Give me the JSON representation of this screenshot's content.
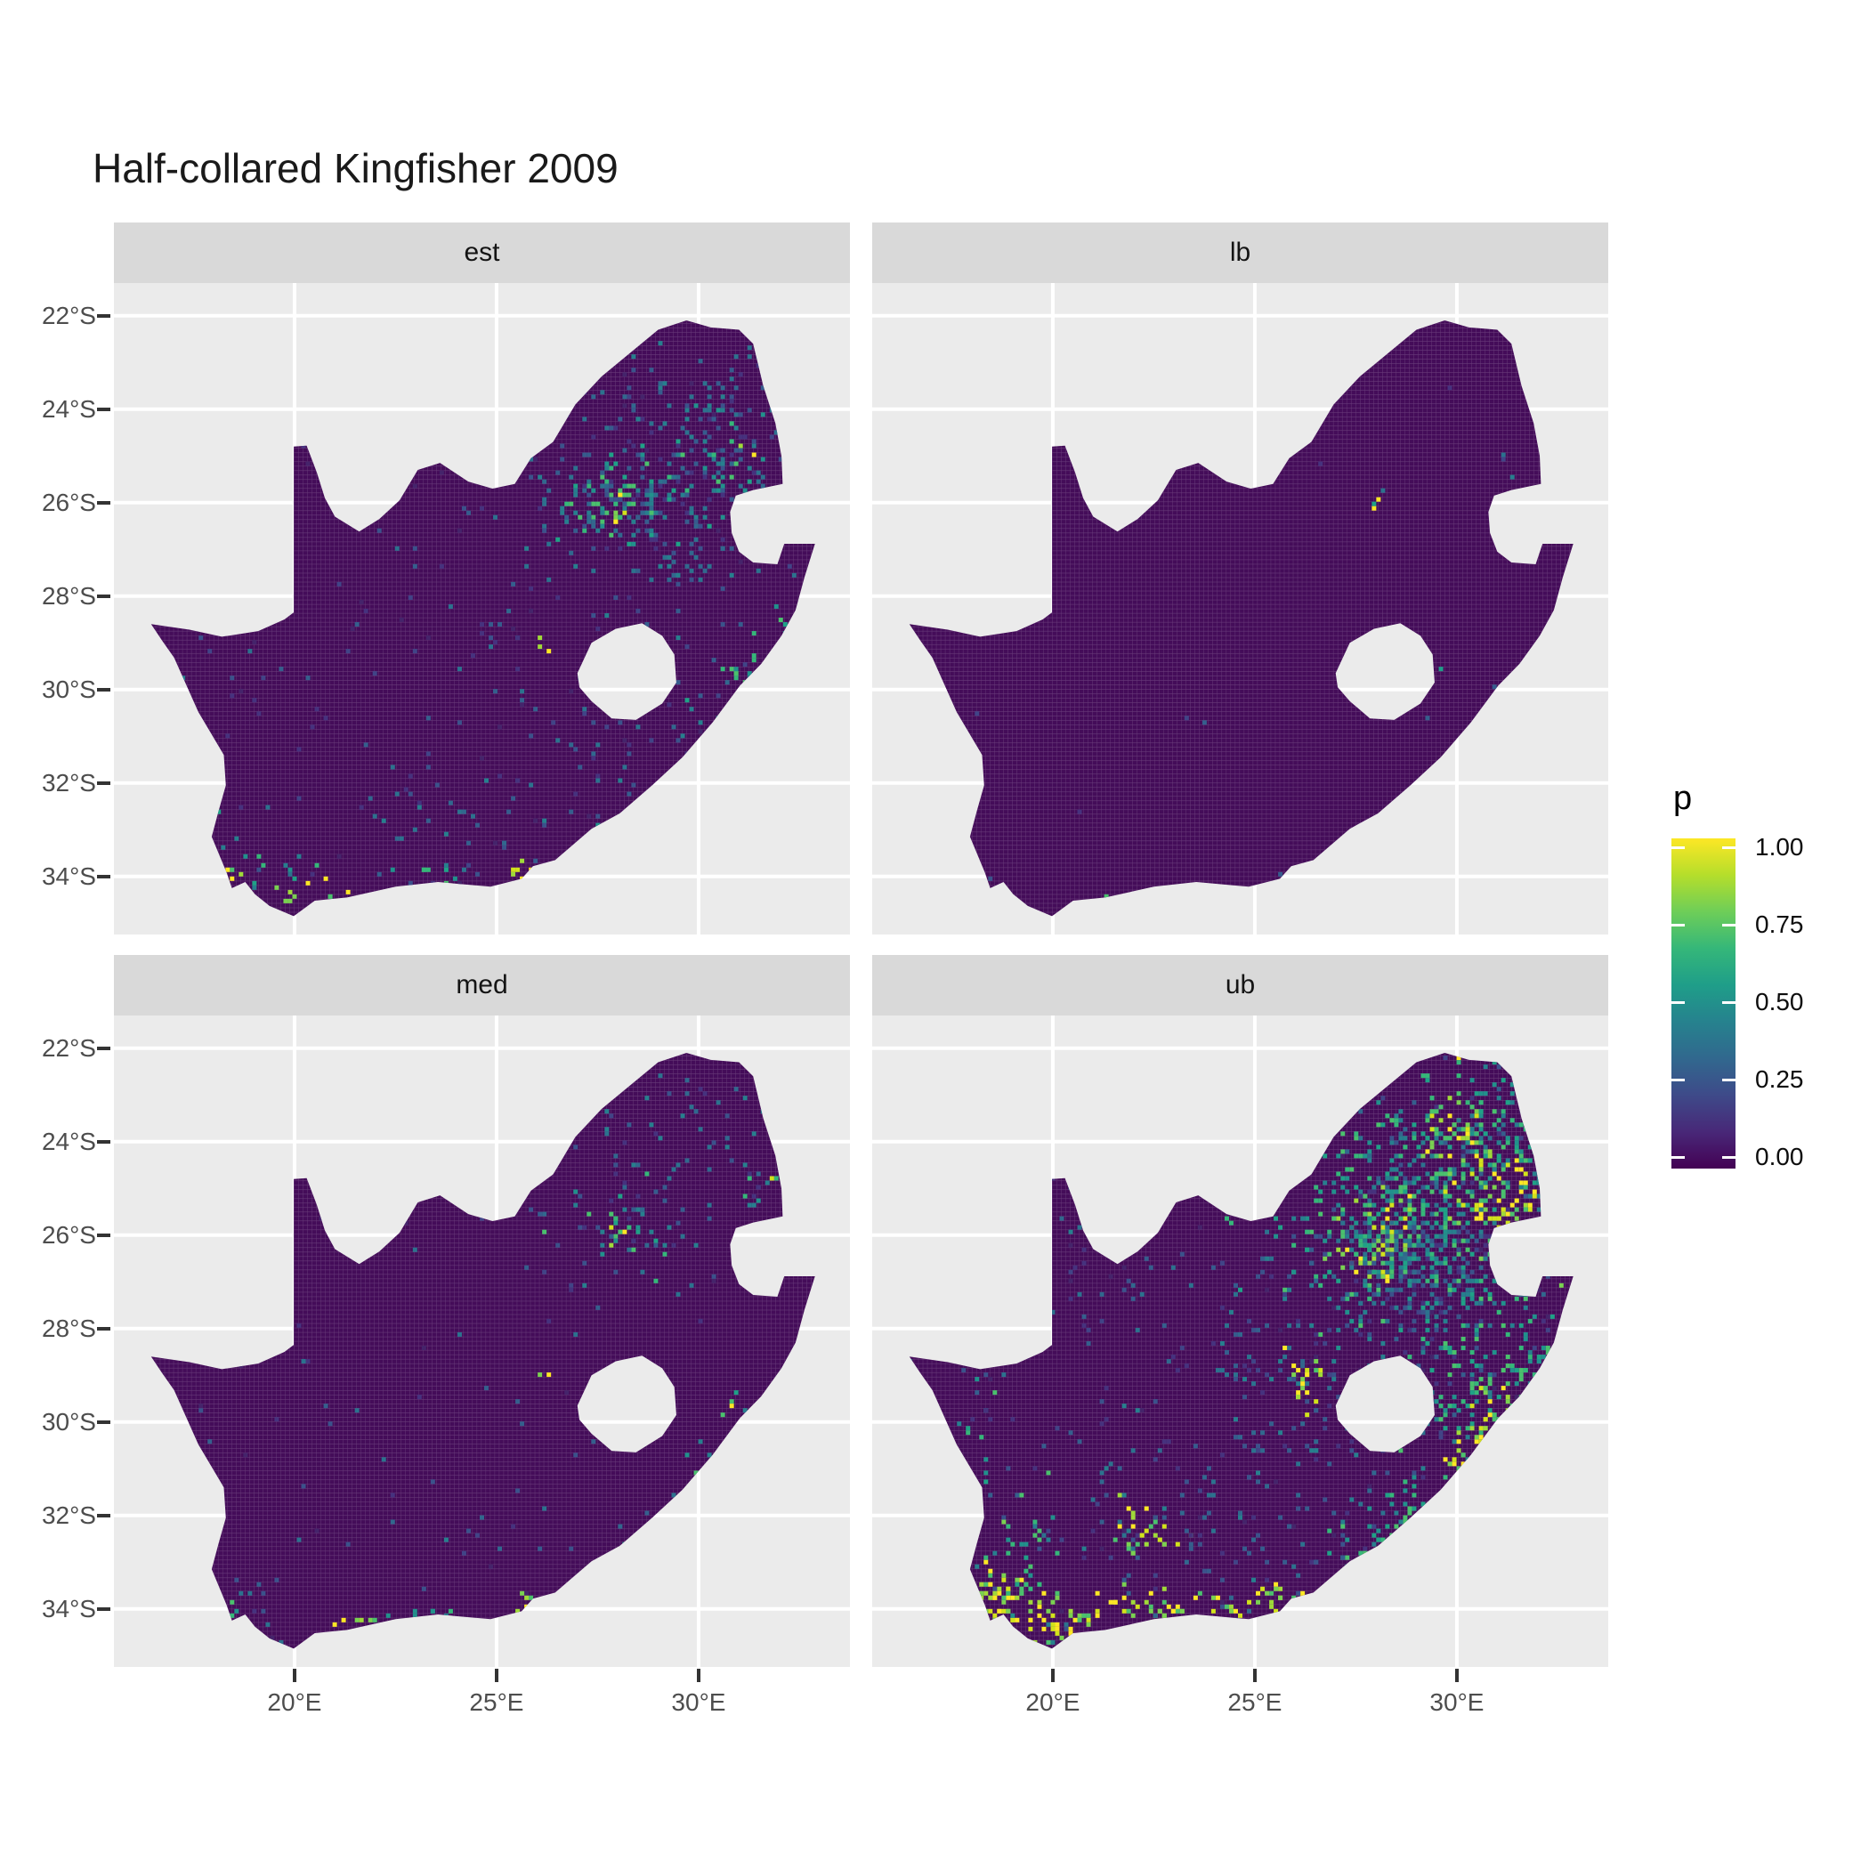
{
  "title": "Half-collared Kingfisher 2009",
  "chart_data": {
    "type": "heatmap",
    "subtype": "faceted-raster-map",
    "title": "Half-collared Kingfisher 2009",
    "region": "South Africa (Lesotho and Eswatini excluded)",
    "grid": "facet_wrap 2x2",
    "x_axis": {
      "ticks": [
        {
          "label": "20°E",
          "lon": 20
        },
        {
          "label": "25°E",
          "lon": 25
        },
        {
          "label": "30°E",
          "lon": 30
        }
      ],
      "range_lon": [
        15.53,
        33.75
      ]
    },
    "y_axis": {
      "ticks": [
        {
          "label": "22°S",
          "lat": 22
        },
        {
          "label": "24°S",
          "lat": 24
        },
        {
          "label": "26°S",
          "lat": 26
        },
        {
          "label": "28°S",
          "lat": 28
        },
        {
          "label": "30°S",
          "lat": 30
        },
        {
          "label": "32°S",
          "lat": 32
        },
        {
          "label": "34°S",
          "lat": 34
        }
      ],
      "range_latS": [
        21.3,
        35.24
      ]
    },
    "legend": {
      "title": "p",
      "labels": [
        "1.00",
        "0.75",
        "0.50",
        "0.25",
        "0.00"
      ],
      "values": [
        1.0,
        0.75,
        0.5,
        0.25,
        0.0
      ],
      "palette": "viridis",
      "position": "right"
    },
    "colors": {
      "panel_bg": "#ebebeb",
      "strip_bg": "#d9d9d9",
      "grid_line": "#ffffff",
      "map_base": "#440c59",
      "mesh_line": "rgba(255,255,255,0.20)",
      "viridis_stops": [
        "#440154",
        "#482878",
        "#3e4a89",
        "#31688e",
        "#26828e",
        "#1f9e89",
        "#35b779",
        "#6ece58",
        "#b5de2b",
        "#fde725"
      ],
      "palettes": {
        "faint": [
          "#45246b",
          "#46327e",
          "#414487",
          "#3b528b",
          "#355f8d",
          "#2c728e"
        ],
        "cool": [
          "#46327e",
          "#3b528b",
          "#365c8d",
          "#2c728e",
          "#31688e",
          "#277f8e"
        ],
        "warm": [
          "#277f8e",
          "#21918c",
          "#1fa187",
          "#35b779",
          "#4ac16d"
        ],
        "hot": [
          "#4ac16d",
          "#7ad151",
          "#a0da39",
          "#d2e21b",
          "#fde725",
          "#fde725"
        ]
      }
    },
    "facets": [
      {
        "label": "est",
        "seed": 11,
        "noise": 240,
        "hotspots": [
          [
            28.0,
            26.08,
            0.18,
            0.18,
            10,
            "hot"
          ],
          [
            28.05,
            25.95,
            0.75,
            0.6,
            70,
            "warm"
          ],
          [
            28.2,
            25.6,
            1.6,
            1.1,
            130,
            "cool"
          ],
          [
            29.8,
            24.6,
            1.7,
            1.2,
            90,
            "cool"
          ],
          [
            30.9,
            25.2,
            0.7,
            0.6,
            30,
            "warm"
          ],
          [
            31.2,
            24.85,
            0.1,
            0.1,
            2,
            "hot"
          ],
          [
            30.8,
            24.0,
            0.8,
            0.8,
            30,
            "cool"
          ],
          [
            32.0,
            23.2,
            0.6,
            0.7,
            25,
            "cool"
          ],
          [
            29.3,
            26.9,
            1.2,
            0.9,
            50,
            "cool"
          ],
          [
            26.2,
            29.05,
            0.12,
            0.12,
            3,
            "hot"
          ],
          [
            24.9,
            28.7,
            0.5,
            0.4,
            10,
            "cool"
          ],
          [
            31.0,
            29.85,
            0.25,
            0.3,
            12,
            "warm"
          ],
          [
            30.4,
            30.6,
            0.35,
            0.35,
            10,
            "warm"
          ],
          [
            32.0,
            28.75,
            0.3,
            0.3,
            8,
            "warm"
          ],
          [
            28.0,
            33.0,
            0.25,
            0.2,
            8,
            "warm"
          ],
          [
            25.62,
            33.92,
            0.3,
            0.15,
            10,
            "hot"
          ],
          [
            23.1,
            34.03,
            0.8,
            0.13,
            14,
            "warm"
          ],
          [
            20.9,
            34.38,
            0.8,
            0.15,
            12,
            "hot"
          ],
          [
            19.1,
            33.7,
            0.55,
            0.45,
            14,
            "warm"
          ],
          [
            18.4,
            34.02,
            0.18,
            0.18,
            6,
            "hot"
          ],
          [
            22.3,
            32.35,
            0.5,
            0.3,
            8,
            "cool"
          ],
          [
            24.6,
            32.7,
            1.6,
            0.6,
            20,
            "cool"
          ],
          [
            27.6,
            31.6,
            0.8,
            0.7,
            18,
            "cool"
          ],
          [
            17.15,
            30.3,
            0.12,
            0.5,
            5,
            "warm"
          ],
          [
            29.0,
            29.8,
            0.8,
            0.6,
            15,
            "cool"
          ]
        ],
        "cells": []
      },
      {
        "label": "lb",
        "seed": 22,
        "noise": 18,
        "hotspots": [],
        "cells": [
          [
            27.95,
            26.15,
            "#fde725"
          ],
          [
            28.1,
            25.9,
            "#fde725"
          ],
          [
            28.0,
            26.05,
            "#1fa187"
          ],
          [
            28.2,
            25.72,
            "#2c728e"
          ],
          [
            31.2,
            24.95,
            "#2c728e"
          ],
          [
            31.35,
            25.45,
            "#277f8e"
          ],
          [
            32.3,
            22.65,
            "#1fa187"
          ],
          [
            29.65,
            29.55,
            "#1f9e89"
          ],
          [
            21.3,
            34.4,
            "#4ac16d"
          ],
          [
            25.6,
            33.95,
            "#365c8d"
          ],
          [
            18.5,
            34.05,
            "#3b528b"
          ],
          [
            30.9,
            29.9,
            "#365c8d"
          ],
          [
            31.9,
            23.2,
            "#414487"
          ],
          [
            31.1,
            25.1,
            "#414487"
          ]
        ]
      },
      {
        "label": "med",
        "seed": 33,
        "noise": 110,
        "hotspots": [
          [
            28.0,
            26.05,
            0.15,
            0.15,
            6,
            "hot"
          ],
          [
            28.05,
            25.9,
            0.6,
            0.5,
            22,
            "warm"
          ],
          [
            28.3,
            25.5,
            1.3,
            1.0,
            45,
            "cool"
          ],
          [
            29.9,
            24.4,
            1.5,
            1.1,
            40,
            "cool"
          ],
          [
            31.6,
            24.3,
            0.5,
            0.6,
            10,
            "warm"
          ],
          [
            31.9,
            24.6,
            0.08,
            0.08,
            1,
            "hot"
          ],
          [
            26.2,
            29.05,
            0.1,
            0.1,
            2,
            "hot"
          ],
          [
            31.0,
            29.85,
            0.22,
            0.28,
            8,
            "warm"
          ],
          [
            30.9,
            29.6,
            0.06,
            0.06,
            1,
            "hot"
          ],
          [
            30.35,
            30.65,
            0.3,
            0.3,
            6,
            "warm"
          ],
          [
            25.62,
            33.92,
            0.2,
            0.12,
            6,
            "hot"
          ],
          [
            21.9,
            34.28,
            0.7,
            0.12,
            9,
            "hot"
          ],
          [
            23.3,
            34.05,
            0.5,
            0.12,
            7,
            "warm"
          ],
          [
            19.0,
            33.85,
            0.5,
            0.4,
            9,
            "cool"
          ],
          [
            18.42,
            34.03,
            0.15,
            0.15,
            4,
            "warm"
          ],
          [
            28.0,
            33.0,
            0.2,
            0.2,
            4,
            "warm"
          ],
          [
            24.3,
            32.7,
            1.3,
            0.5,
            10,
            "cool"
          ],
          [
            29.0,
            22.8,
            1.2,
            0.5,
            10,
            "cool"
          ],
          [
            32.0,
            23.0,
            0.5,
            0.6,
            8,
            "cool"
          ]
        ],
        "cells": []
      },
      {
        "label": "ub",
        "seed": 44,
        "noise": 380,
        "hotspots": [
          [
            28.1,
            26.15,
            0.5,
            0.5,
            80,
            "hot"
          ],
          [
            28.15,
            25.9,
            1.5,
            1.2,
            280,
            "warm"
          ],
          [
            28.3,
            26.5,
            1.0,
            0.8,
            90,
            "cool"
          ],
          [
            29.85,
            23.9,
            0.5,
            0.45,
            45,
            "hot"
          ],
          [
            30.0,
            24.6,
            1.7,
            1.3,
            190,
            "warm"
          ],
          [
            29.5,
            25.5,
            1.5,
            1.0,
            120,
            "cool"
          ],
          [
            31.2,
            25.3,
            0.7,
            0.6,
            80,
            "hot"
          ],
          [
            31.3,
            23.6,
            0.9,
            1.0,
            90,
            "warm"
          ],
          [
            32.2,
            22.9,
            0.5,
            0.5,
            35,
            "warm"
          ],
          [
            30.3,
            26.9,
            0.9,
            0.7,
            70,
            "warm"
          ],
          [
            29.3,
            27.9,
            0.9,
            0.7,
            50,
            "cool"
          ],
          [
            26.2,
            29.1,
            0.3,
            0.3,
            22,
            "hot"
          ],
          [
            30.6,
            29.4,
            0.9,
            0.8,
            90,
            "warm"
          ],
          [
            31.0,
            29.9,
            0.35,
            0.4,
            30,
            "hot"
          ],
          [
            30.3,
            30.7,
            0.4,
            0.4,
            28,
            "hot"
          ],
          [
            32.0,
            28.7,
            0.45,
            0.45,
            30,
            "warm"
          ],
          [
            28.9,
            31.9,
            0.6,
            0.45,
            30,
            "warm"
          ],
          [
            27.8,
            32.6,
            0.6,
            0.35,
            28,
            "warm"
          ],
          [
            25.65,
            33.9,
            0.45,
            0.2,
            32,
            "hot"
          ],
          [
            23.0,
            34.0,
            0.95,
            0.2,
            45,
            "hot"
          ],
          [
            20.1,
            34.3,
            0.9,
            0.3,
            50,
            "hot"
          ],
          [
            18.6,
            33.9,
            0.5,
            0.5,
            65,
            "hot"
          ],
          [
            19.3,
            32.9,
            0.45,
            0.8,
            30,
            "warm"
          ],
          [
            22.35,
            32.3,
            0.5,
            0.35,
            28,
            "hot"
          ],
          [
            24.6,
            32.5,
            1.6,
            0.7,
            45,
            "cool"
          ],
          [
            17.9,
            31.3,
            0.3,
            1.1,
            25,
            "warm"
          ],
          [
            23.5,
            30.8,
            2.2,
            1.3,
            50,
            "cool"
          ],
          [
            25.5,
            28.2,
            1.6,
            1.0,
            45,
            "cool"
          ],
          [
            21.3,
            26.0,
            1.3,
            0.6,
            18,
            "cool"
          ],
          [
            26.7,
            30.6,
            0.8,
            0.6,
            30,
            "cool"
          ]
        ],
        "cells": []
      }
    ],
    "outline": [
      [
        16.45,
        28.6
      ],
      [
        17.4,
        28.72
      ],
      [
        18.2,
        28.87
      ],
      [
        19.1,
        28.75
      ],
      [
        19.75,
        28.5
      ],
      [
        19.98,
        28.35
      ],
      [
        19.98,
        24.8
      ],
      [
        20.3,
        24.78
      ],
      [
        20.55,
        25.35
      ],
      [
        20.75,
        25.9
      ],
      [
        21.0,
        26.3
      ],
      [
        21.6,
        26.62
      ],
      [
        22.1,
        26.35
      ],
      [
        22.6,
        25.95
      ],
      [
        23.05,
        25.3
      ],
      [
        23.6,
        25.15
      ],
      [
        24.3,
        25.55
      ],
      [
        24.9,
        25.7
      ],
      [
        25.45,
        25.6
      ],
      [
        25.85,
        25.05
      ],
      [
        26.4,
        24.7
      ],
      [
        26.95,
        23.9
      ],
      [
        27.6,
        23.3
      ],
      [
        28.3,
        22.8
      ],
      [
        29.0,
        22.3
      ],
      [
        29.7,
        22.1
      ],
      [
        30.3,
        22.25
      ],
      [
        31.0,
        22.3
      ],
      [
        31.35,
        22.6
      ],
      [
        31.6,
        23.5
      ],
      [
        31.9,
        24.3
      ],
      [
        32.05,
        25.0
      ],
      [
        32.08,
        25.6
      ],
      [
        31.35,
        25.73
      ],
      [
        30.92,
        25.85
      ],
      [
        30.78,
        26.2
      ],
      [
        30.82,
        26.65
      ],
      [
        31.0,
        27.05
      ],
      [
        31.35,
        27.28
      ],
      [
        31.95,
        27.32
      ],
      [
        32.12,
        26.88
      ],
      [
        32.88,
        26.88
      ],
      [
        32.62,
        27.6
      ],
      [
        32.4,
        28.3
      ],
      [
        32.05,
        28.85
      ],
      [
        31.55,
        29.45
      ],
      [
        31.02,
        29.92
      ],
      [
        30.35,
        30.7
      ],
      [
        29.6,
        31.45
      ],
      [
        28.85,
        32.05
      ],
      [
        28.05,
        32.65
      ],
      [
        27.35,
        32.98
      ],
      [
        26.45,
        33.65
      ],
      [
        25.9,
        33.78
      ],
      [
        25.62,
        34.05
      ],
      [
        24.85,
        34.22
      ],
      [
        23.55,
        34.12
      ],
      [
        22.5,
        34.22
      ],
      [
        21.3,
        34.45
      ],
      [
        20.5,
        34.52
      ],
      [
        19.98,
        34.85
      ],
      [
        19.38,
        34.63
      ],
      [
        19.02,
        34.38
      ],
      [
        18.78,
        34.12
      ],
      [
        18.45,
        34.25
      ],
      [
        18.32,
        33.92
      ],
      [
        17.95,
        33.15
      ],
      [
        18.12,
        32.6
      ],
      [
        18.3,
        32.05
      ],
      [
        18.25,
        31.4
      ],
      [
        17.62,
        30.48
      ],
      [
        17.02,
        29.32
      ],
      [
        16.72,
        28.95
      ]
    ],
    "lesotho_hole": [
      [
        27.0,
        29.65
      ],
      [
        27.35,
        29.0
      ],
      [
        27.95,
        28.7
      ],
      [
        28.6,
        28.58
      ],
      [
        29.1,
        28.85
      ],
      [
        29.4,
        29.25
      ],
      [
        29.45,
        29.85
      ],
      [
        29.1,
        30.3
      ],
      [
        28.45,
        30.65
      ],
      [
        27.85,
        30.62
      ],
      [
        27.35,
        30.25
      ],
      [
        27.05,
        29.95
      ]
    ]
  }
}
